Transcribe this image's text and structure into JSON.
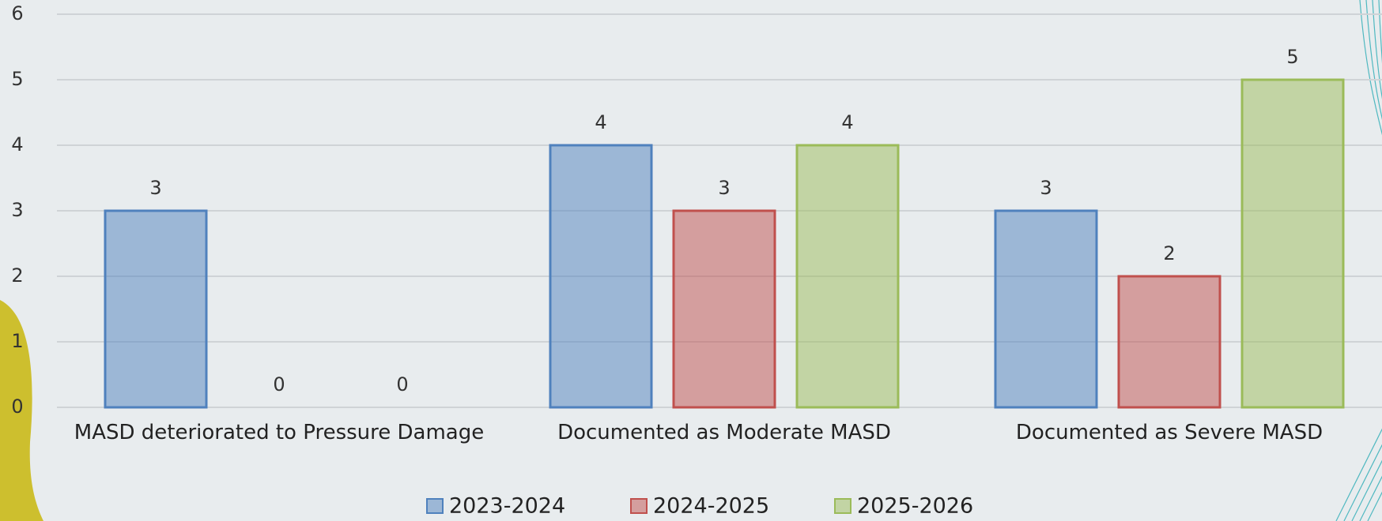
{
  "chart_data": {
    "type": "bar",
    "categories": [
      "MASD deteriorated to Pressure Damage",
      "Documented as Moderate MASD",
      "Documented as Severe MASD"
    ],
    "series": [
      {
        "name": "2023-2024",
        "color": "#4f81bd",
        "values": [
          3,
          4,
          3
        ]
      },
      {
        "name": "2024-2025",
        "color": "#c0504d",
        "values": [
          0,
          3,
          2
        ]
      },
      {
        "name": "2025-2026",
        "color": "#9bbb59",
        "values": [
          0,
          4,
          5
        ]
      }
    ],
    "ylim": [
      0,
      6
    ],
    "yticks": [
      0,
      1,
      2,
      3,
      4,
      5,
      6
    ],
    "grid": true,
    "legend": "bottom"
  }
}
